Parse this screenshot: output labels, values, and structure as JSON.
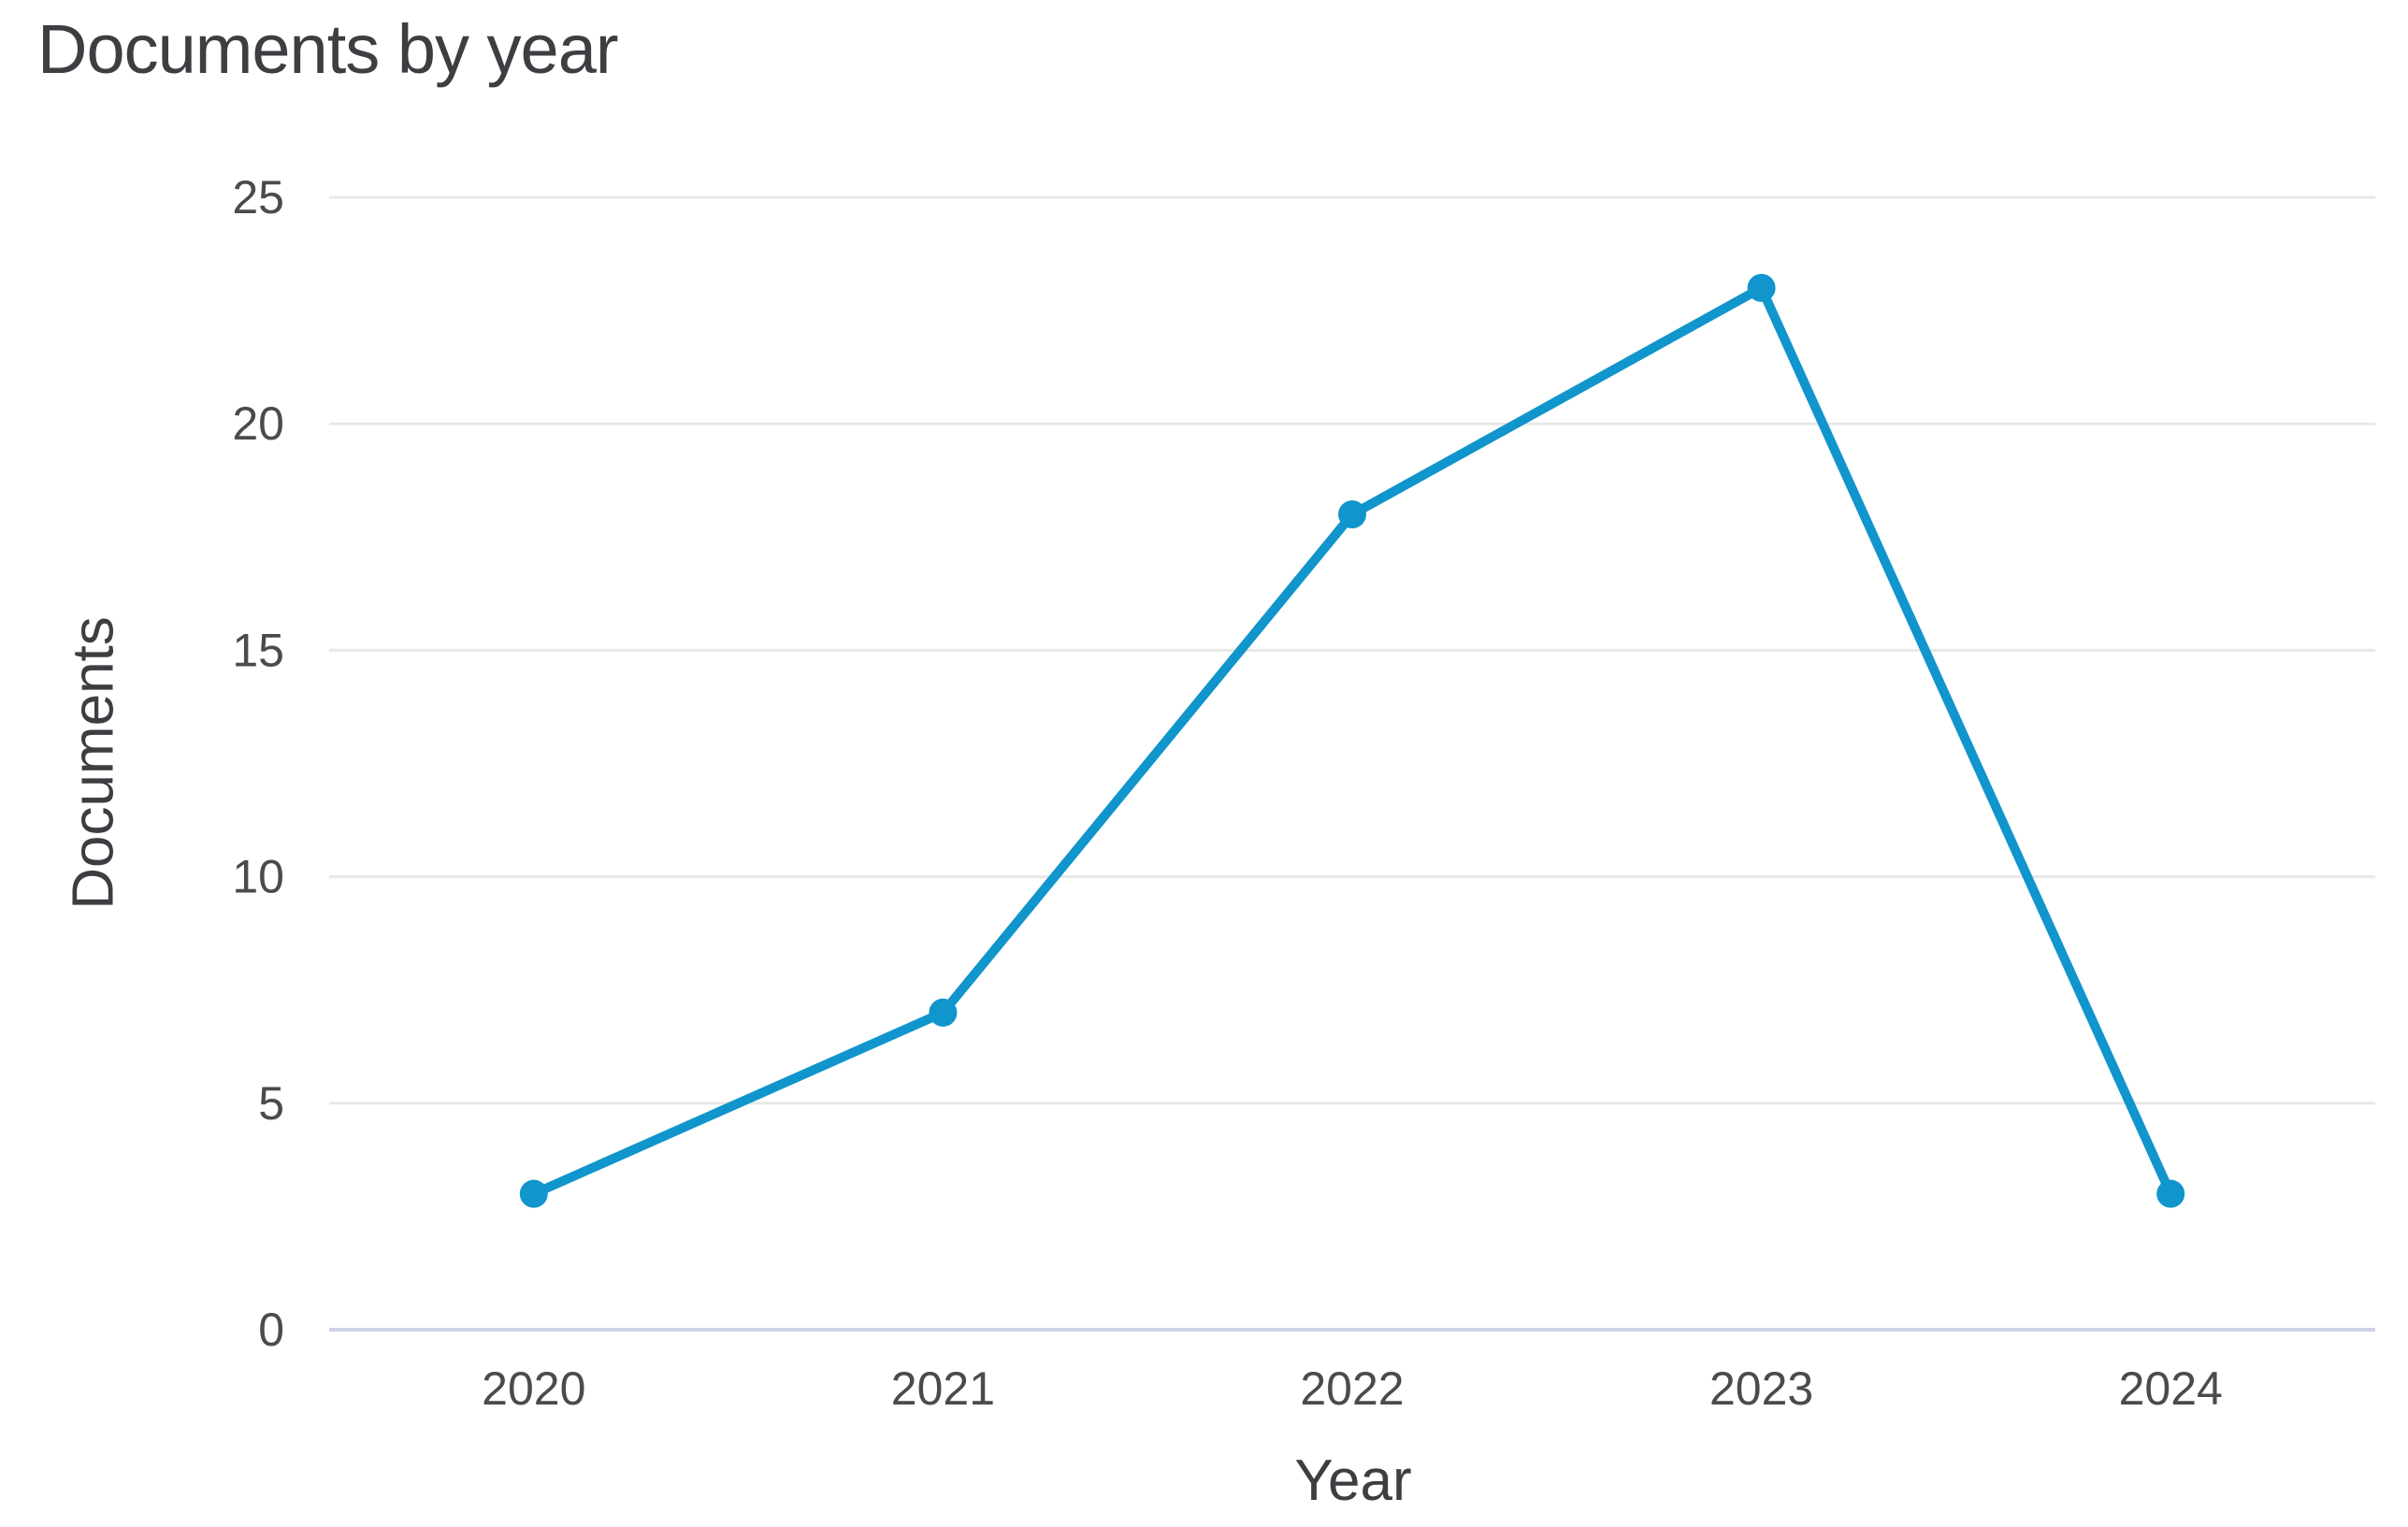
{
  "header": {
    "title": "Documents by year"
  },
  "chart_data": {
    "type": "line",
    "title": "Documents by year",
    "xlabel": "Year",
    "ylabel": "Documents",
    "categories": [
      "2020",
      "2021",
      "2022",
      "2023",
      "2024"
    ],
    "series": [
      {
        "name": "Documents",
        "values": [
          3,
          7,
          18,
          23,
          3
        ]
      }
    ],
    "ylim": [
      0,
      25
    ],
    "yticks": [
      0,
      5,
      10,
      15,
      20,
      25
    ],
    "grid": "horizontal-only",
    "legend": "none",
    "markers": "filled-circle",
    "colors": {
      "line": "#1095cc",
      "point": "#1095cc",
      "gridline": "#e8e8e8",
      "zero_axis": "#ccd3e8",
      "title_text": "#3d3d42",
      "axis_label_text": "#3d3d42",
      "tick_text": "#4a4a4f",
      "background": "#ffffff"
    }
  }
}
